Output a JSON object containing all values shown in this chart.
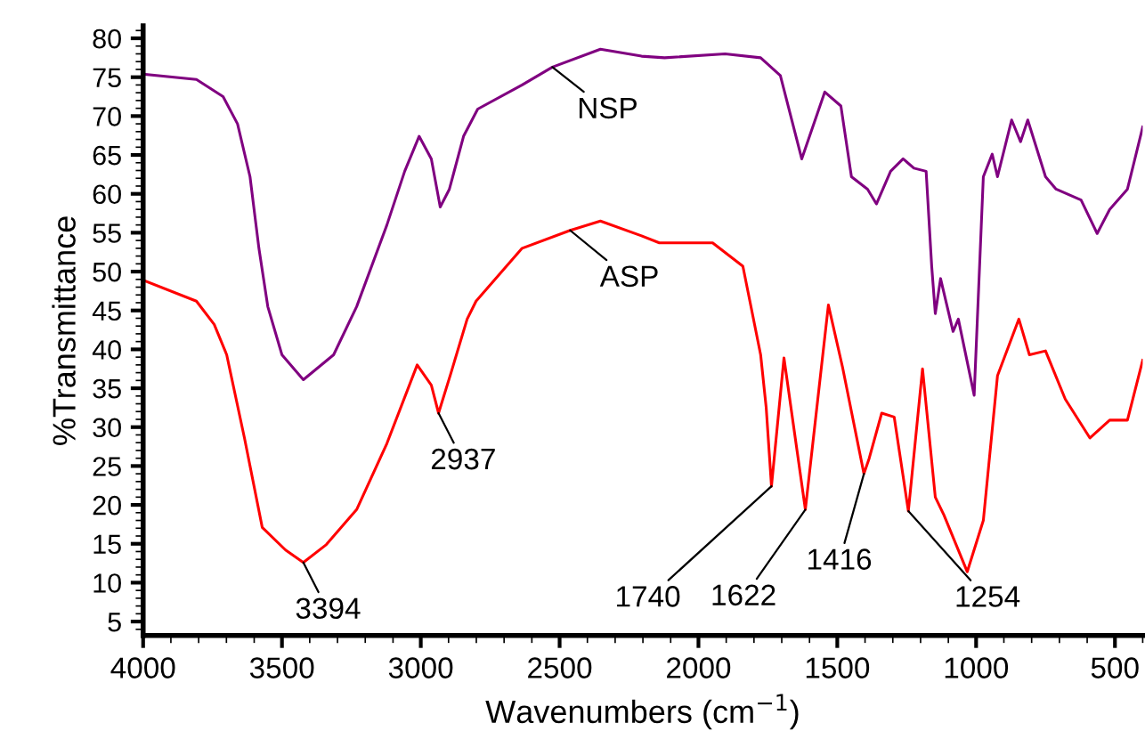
{
  "chart_data": {
    "type": "line",
    "xlabel": "Wavenumbers (cm$^{−1}$)",
    "ylabel": "%Transmittance",
    "xlim": [
      4000,
      400
    ],
    "xticks": [
      4000,
      3500,
      3000,
      2500,
      2000,
      1500,
      1000,
      500
    ],
    "ylim": [
      3.2,
      81.6
    ],
    "yticks": [
      5,
      10,
      15,
      20,
      25,
      30,
      35,
      40,
      45,
      50,
      55,
      60,
      65,
      70,
      75,
      80
    ],
    "grid": false,
    "legend": false,
    "marker": "none",
    "line_style": "solid",
    "series": [
      {
        "name": "NSP",
        "color": "#800080",
        "x": [
          4000,
          3808,
          3712,
          3660,
          3615,
          3583,
          3551,
          3500,
          3423,
          3314,
          3231,
          3122,
          3058,
          3006,
          2962,
          2930,
          2897,
          2846,
          2795,
          2635,
          2526,
          2353,
          2205,
          2122,
          1904,
          1776,
          1705,
          1628,
          1545,
          1487,
          1449,
          1391,
          1359,
          1308,
          1263,
          1224,
          1180,
          1160,
          1147,
          1128,
          1083,
          1064,
          1007,
          974,
          942,
          923,
          872,
          840,
          814,
          750,
          712,
          622,
          564,
          519,
          455,
          400
        ],
        "values": [
          75.4,
          74.7,
          72.5,
          69,
          62.2,
          53,
          45.5,
          39.3,
          36.1,
          39.3,
          45.5,
          56,
          62.9,
          67.4,
          64.5,
          58.3,
          60.6,
          67.4,
          70.9,
          74,
          76.3,
          78.6,
          77.7,
          77.5,
          78,
          77.5,
          75.2,
          64.5,
          73.1,
          71.3,
          62.2,
          60.6,
          58.7,
          62.9,
          64.5,
          63.3,
          62.9,
          50.7,
          44.6,
          49.1,
          42.3,
          43.9,
          34.1,
          62.2,
          65.1,
          62.2,
          69.5,
          66.7,
          69.5,
          62.2,
          60.6,
          59.2,
          54.9,
          58,
          60.6,
          68.6
        ]
      },
      {
        "name": "ASP",
        "color": "#ff0000",
        "x": [
          4000,
          3808,
          3744,
          3699,
          3635,
          3571,
          3487,
          3423,
          3340,
          3231,
          3122,
          3013,
          2962,
          2936,
          2891,
          2833,
          2801,
          2635,
          2462,
          2353,
          2205,
          2141,
          1949,
          1840,
          1776,
          1756,
          1737,
          1692,
          1615,
          1532,
          1481,
          1404,
          1385,
          1340,
          1295,
          1244,
          1193,
          1147,
          1116,
          1032,
          974,
          923,
          846,
          808,
          750,
          679,
          590,
          519,
          455,
          400
        ],
        "values": [
          48.9,
          46.2,
          43.2,
          39.3,
          28.6,
          17.1,
          14.2,
          12.6,
          14.9,
          19.4,
          27.9,
          38,
          35.4,
          31.8,
          37,
          43.9,
          46.2,
          53,
          55.3,
          56.5,
          54.6,
          53.7,
          53.7,
          50.7,
          39.3,
          32.5,
          22.4,
          38.9,
          19.4,
          45.7,
          37.7,
          24,
          26,
          31.8,
          31.3,
          19.2,
          37.5,
          21,
          18.7,
          11.4,
          18,
          36.6,
          43.9,
          39.3,
          39.8,
          33.6,
          28.6,
          30.9,
          30.9,
          38.6
        ]
      }
    ],
    "annotations": [
      {
        "text": "3394",
        "x": 3423,
        "y": 12.6
      },
      {
        "text": "2937",
        "x": 2936,
        "y": 31.8
      },
      {
        "text": "1740",
        "x": 1737,
        "y": 22.4
      },
      {
        "text": "1622",
        "x": 1615,
        "y": 19.4
      },
      {
        "text": "1416",
        "x": 1404,
        "y": 24
      },
      {
        "text": "1254",
        "x": 1244,
        "y": 19.2
      }
    ]
  }
}
